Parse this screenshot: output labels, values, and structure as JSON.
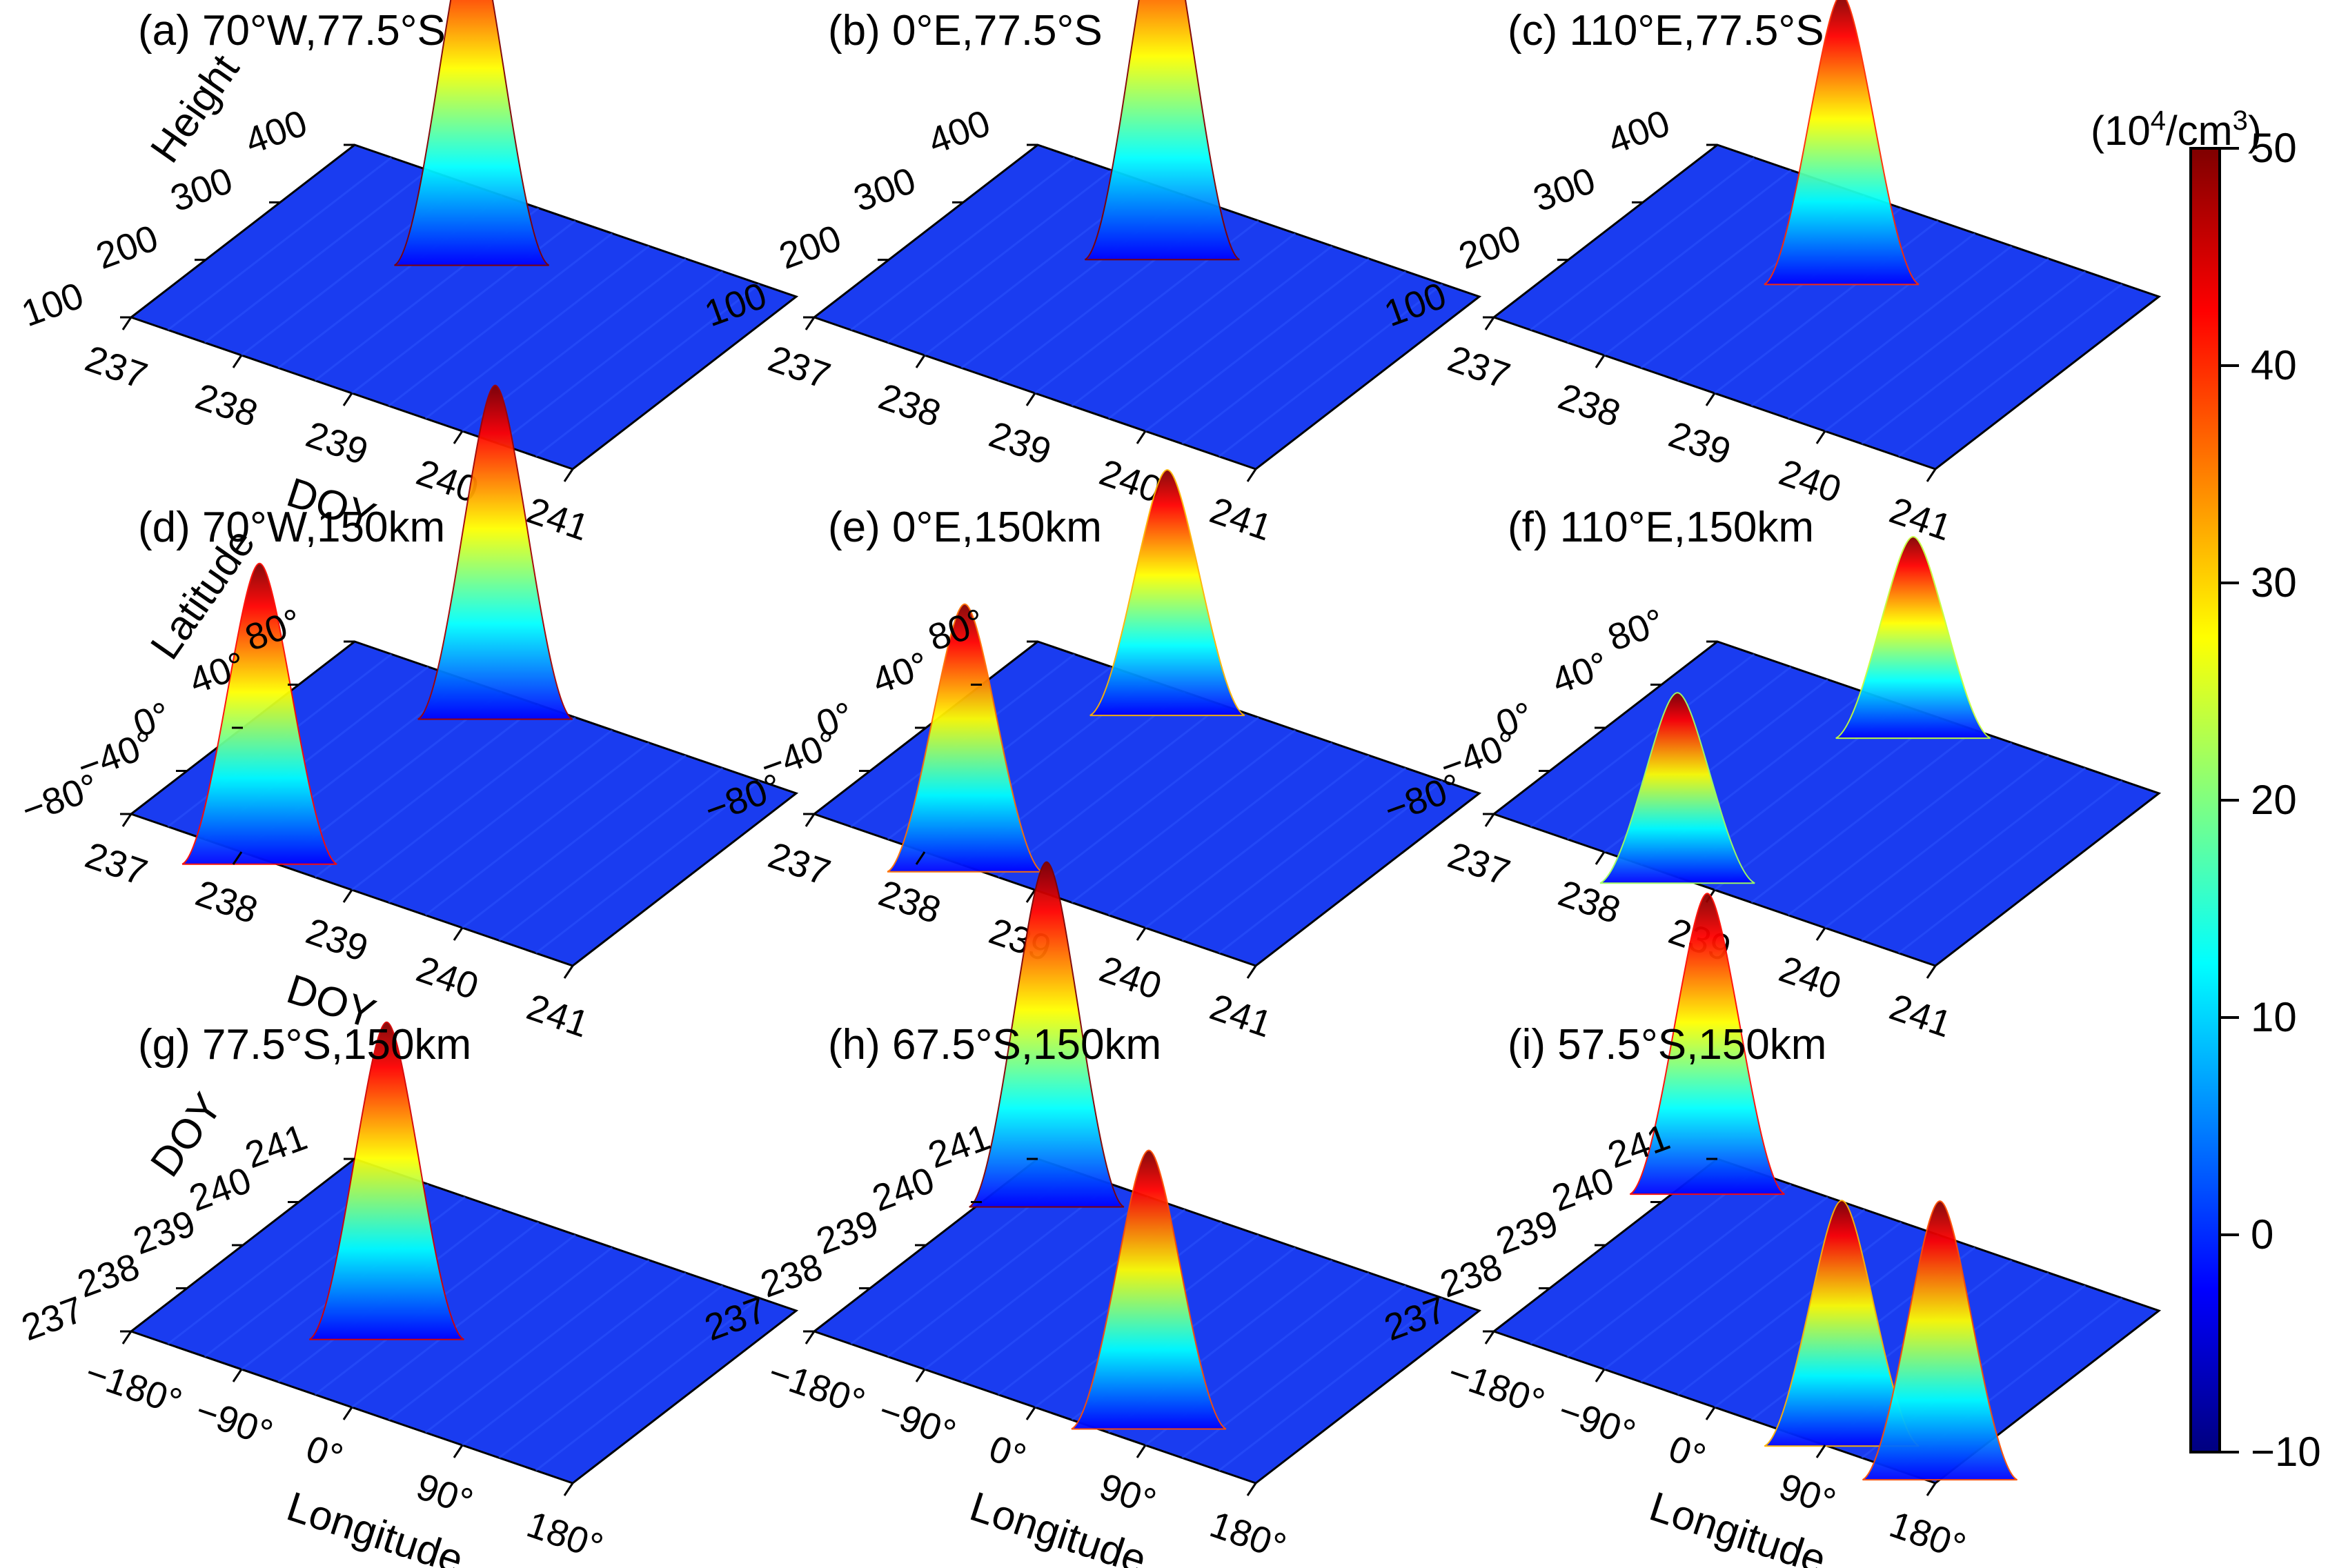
{
  "colorbar": {
    "unit_base": "(10",
    "unit_exp": "4",
    "unit_tail": "/cm",
    "unit_exp2": "3",
    "unit_close": ")",
    "min": -10,
    "max": 50,
    "ticks": [
      "50",
      "40",
      "30",
      "20",
      "10",
      "0",
      "−10"
    ],
    "colors": [
      "#00007f",
      "#0000ff",
      "#0080ff",
      "#00ffff",
      "#80ff80",
      "#ffff00",
      "#ff8000",
      "#ff0000",
      "#7f0000"
    ]
  },
  "chart_data": [
    {
      "id": "a",
      "type": "surface",
      "title": "(a) 70°W,77.5°S",
      "xlabel": "DOY",
      "ylabel": "Height",
      "x_ticks": [
        "237",
        "238",
        "239",
        "240",
        "241"
      ],
      "y_ticks": [
        "100",
        "200",
        "300",
        "400"
      ],
      "x_range": [
        237,
        241
      ],
      "y_range": [
        100,
        400
      ],
      "zlim": [
        -10,
        50
      ],
      "peaks": [
        {
          "x": 238.6,
          "y": 320,
          "z": 50
        }
      ]
    },
    {
      "id": "b",
      "type": "surface",
      "title": "(b) 0°E,77.5°S",
      "xlabel": "",
      "ylabel": "",
      "x_ticks": [
        "237",
        "238",
        "239",
        "240",
        "241"
      ],
      "y_ticks": [
        "100",
        "200",
        "300",
        "400"
      ],
      "x_range": [
        237,
        241
      ],
      "y_range": [
        100,
        400
      ],
      "zlim": [
        -10,
        50
      ],
      "peaks": [
        {
          "x": 238.6,
          "y": 330,
          "z": 52
        }
      ]
    },
    {
      "id": "c",
      "type": "surface",
      "title": "(c) 110°E,77.5°S",
      "xlabel": "",
      "ylabel": "",
      "x_ticks": [
        "237",
        "238",
        "239",
        "240",
        "241"
      ],
      "y_ticks": [
        "100",
        "200",
        "300",
        "400"
      ],
      "x_range": [
        237,
        241
      ],
      "y_range": [
        100,
        400
      ],
      "zlim": [
        -10,
        50
      ],
      "peaks": [
        {
          "x": 238.8,
          "y": 300,
          "z": 40
        }
      ]
    },
    {
      "id": "d",
      "type": "surface",
      "title": "(d) 70°W,150km",
      "xlabel": "DOY",
      "ylabel": "Latitude",
      "x_ticks": [
        "237",
        "238",
        "239",
        "240",
        "241"
      ],
      "y_ticks": [
        "−80°",
        "−40°",
        "0°",
        "40°",
        "80°"
      ],
      "x_range": [
        237,
        241
      ],
      "y_range": [
        -80,
        80
      ],
      "zlim": [
        -10,
        50
      ],
      "peaks": [
        {
          "x": 238.1,
          "y": -75,
          "z": 42
        },
        {
          "x": 238.4,
          "y": 70,
          "z": 48
        }
      ]
    },
    {
      "id": "e",
      "type": "surface",
      "title": "(e) 0°E,150km",
      "xlabel": "",
      "ylabel": "",
      "x_ticks": [
        "237",
        "238",
        "239",
        "240",
        "241"
      ],
      "y_ticks": [
        "−80°",
        "−40°",
        "0°",
        "40°",
        "80°"
      ],
      "x_range": [
        237,
        241
      ],
      "y_range": [
        -80,
        80
      ],
      "zlim": [
        -10,
        50
      ],
      "peaks": [
        {
          "x": 238.3,
          "y": -75,
          "z": 36
        },
        {
          "x": 238.3,
          "y": 70,
          "z": 32
        }
      ]
    },
    {
      "id": "f",
      "type": "surface",
      "title": "(f) 110°E,150km",
      "xlabel": "",
      "ylabel": "",
      "x_ticks": [
        "237",
        "238",
        "239",
        "240",
        "241"
      ],
      "y_ticks": [
        "−80°",
        "−40°",
        "0°",
        "40°",
        "80°"
      ],
      "x_range": [
        237,
        241
      ],
      "y_range": [
        -80,
        80
      ],
      "zlim": [
        -10,
        50
      ],
      "peaks": [
        {
          "x": 238.6,
          "y": -75,
          "z": 22
        },
        {
          "x": 238.9,
          "y": 70,
          "z": 24
        }
      ]
    },
    {
      "id": "g",
      "type": "surface",
      "title": "(g) 77.5°S,150km",
      "xlabel": "Longitude",
      "ylabel": "DOY",
      "x_ticks": [
        "−180°",
        "−90°",
        "0°",
        "90°",
        "180°"
      ],
      "y_ticks": [
        "237",
        "238",
        "239",
        "240",
        "241"
      ],
      "x_range": [
        -180,
        180
      ],
      "y_range": [
        237,
        241
      ],
      "zlim": [
        -10,
        50
      ],
      "peaks": [
        {
          "x": -40,
          "y": 238.5,
          "z": 45
        }
      ]
    },
    {
      "id": "h",
      "type": "surface",
      "title": "(h) 67.5°S,150km",
      "xlabel": "Longitude",
      "ylabel": "",
      "x_ticks": [
        "−180°",
        "−90°",
        "0°",
        "90°",
        "180°"
      ],
      "y_ticks": [
        "237",
        "238",
        "239",
        "240",
        "241"
      ],
      "x_range": [
        -180,
        180
      ],
      "y_range": [
        237,
        241
      ],
      "zlim": [
        -10,
        50
      ],
      "peaks": [
        {
          "x": -150,
          "y": 240.5,
          "z": 50
        },
        {
          "x": 70,
          "y": 237.5,
          "z": 38
        }
      ]
    },
    {
      "id": "i",
      "type": "surface",
      "title": "(i) 57.5°S,150km",
      "xlabel": "Longitude",
      "ylabel": "",
      "x_ticks": [
        "−180°",
        "−90°",
        "0°",
        "90°",
        "180°"
      ],
      "y_ticks": [
        "237",
        "238",
        "239",
        "240",
        "241"
      ],
      "x_range": [
        -180,
        180
      ],
      "y_range": [
        237,
        241
      ],
      "zlim": [
        -10,
        50
      ],
      "peaks": [
        {
          "x": -170,
          "y": 240.6,
          "z": 42
        },
        {
          "x": 90,
          "y": 237.3,
          "z": 32
        },
        {
          "x": 170,
          "y": 237.3,
          "z": 38
        }
      ]
    }
  ]
}
